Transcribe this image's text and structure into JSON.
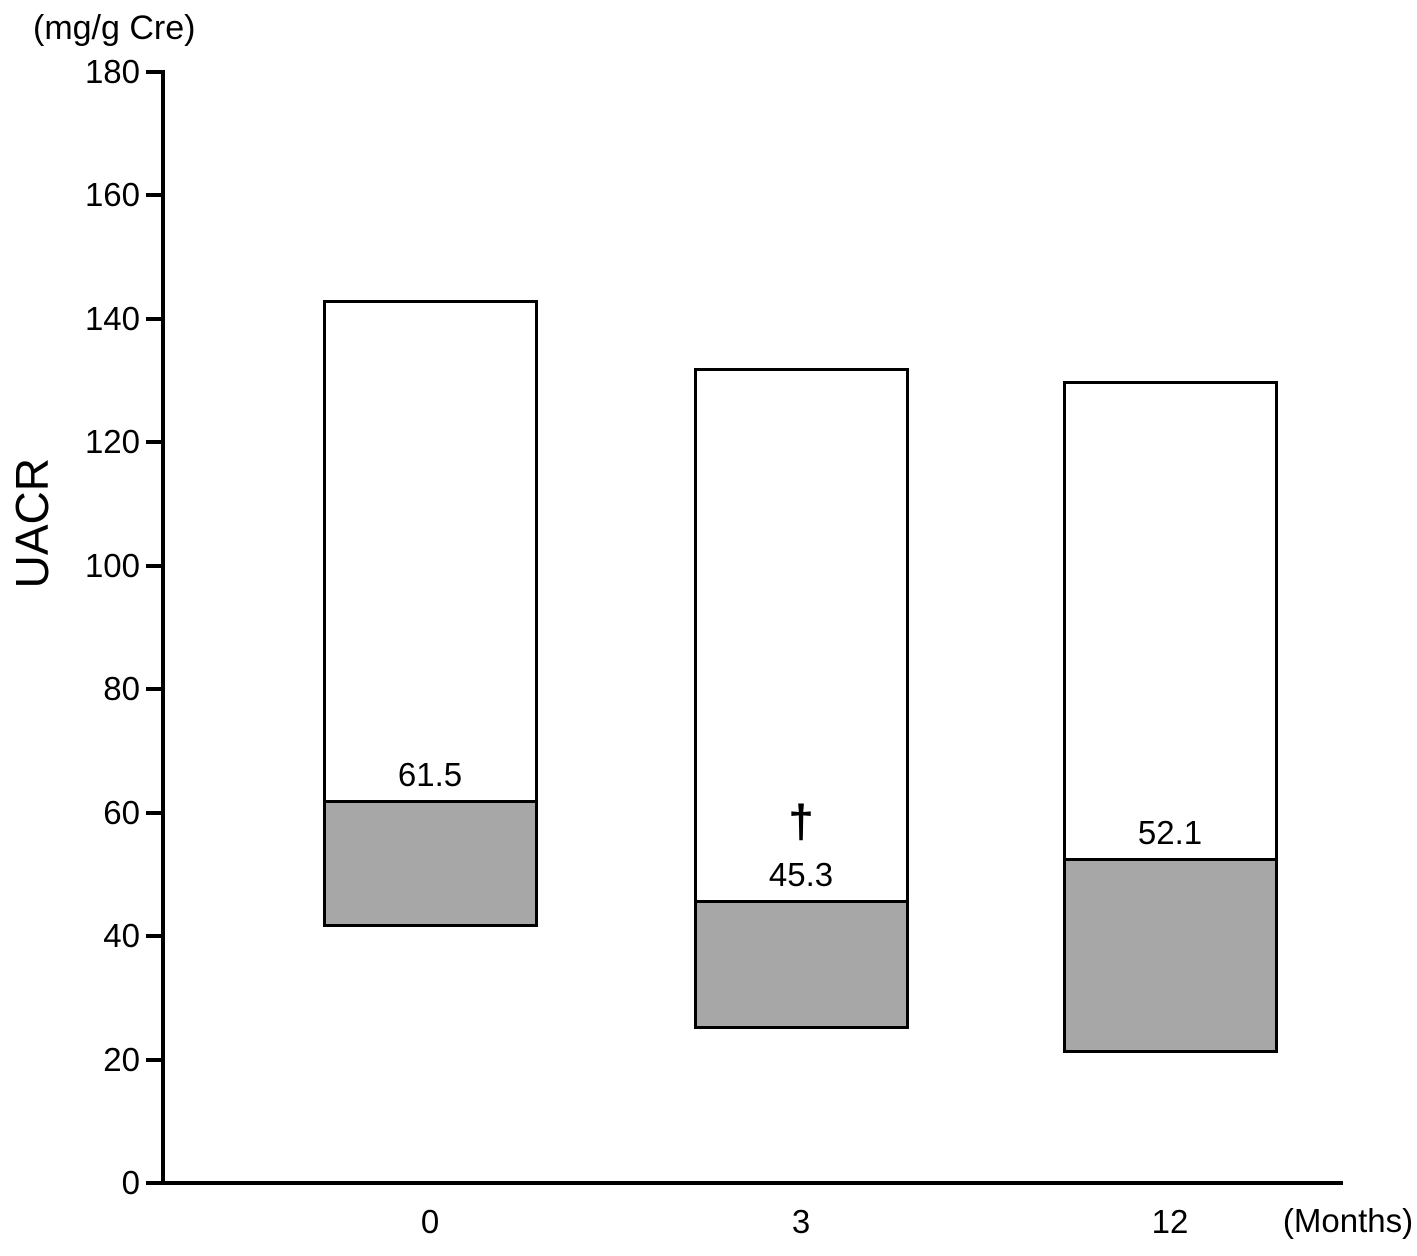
{
  "chart_data": {
    "type": "bar",
    "subtype": "median-split-range-boxes",
    "title": "",
    "unit_label": "(mg/g Cre)",
    "ylabel": "UACR",
    "xlabel": "(Months)",
    "ylim": [
      0,
      180
    ],
    "yticks": [
      0,
      20,
      40,
      60,
      80,
      100,
      120,
      140,
      160,
      180
    ],
    "categories": [
      "0",
      "3",
      "12"
    ],
    "grid": false,
    "legend": "none",
    "series": [
      {
        "category": "0",
        "box_top": 143,
        "median": 61.5,
        "median_label": "61.5",
        "box_bottom": 41.5,
        "annotation": ""
      },
      {
        "category": "3",
        "box_top": 132,
        "median": 45.3,
        "median_label": "45.3",
        "box_bottom": 25,
        "annotation": "†"
      },
      {
        "category": "12",
        "box_top": 130,
        "median": 52.1,
        "median_label": "52.1",
        "box_bottom": 21,
        "annotation": ""
      }
    ],
    "colors": {
      "stroke": "#000000",
      "upper_segment_fill": "#ffffff",
      "lower_segment_fill": "#a7a7a7",
      "background": "#ffffff",
      "text": "#000000"
    }
  }
}
